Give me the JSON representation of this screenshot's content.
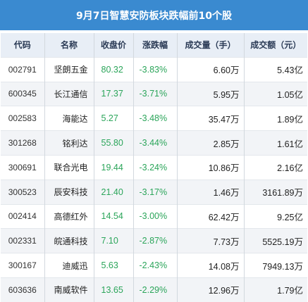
{
  "colors": {
    "header_bg": "#3a8ad0",
    "column_header_bg": "#e8eef6",
    "down": "#2ba55a"
  },
  "chart_data": {
    "type": "table",
    "title": "9月7日智慧安防板块跌幅前10个股",
    "columns": [
      "代码",
      "名称",
      "收盘价",
      "涨跌幅",
      "成交量（手）",
      "成交额（元）"
    ],
    "rows": [
      [
        "002791",
        "坚朗五金",
        "80.32",
        "-3.83%",
        "6.60万",
        "5.43亿"
      ],
      [
        "600345",
        "长江通信",
        "17.37",
        "-3.71%",
        "5.95万",
        "1.05亿"
      ],
      [
        "002583",
        "海能达",
        "5.27",
        "-3.48%",
        "35.47万",
        "1.89亿"
      ],
      [
        "301268",
        "铭利达",
        "55.80",
        "-3.44%",
        "2.85万",
        "1.61亿"
      ],
      [
        "300691",
        "联合光电",
        "19.44",
        "-3.24%",
        "10.86万",
        "2.16亿"
      ],
      [
        "300523",
        "辰安科技",
        "21.40",
        "-3.17%",
        "1.46万",
        "3161.89万"
      ],
      [
        "002414",
        "高德红外",
        "14.54",
        "-3.00%",
        "62.42万",
        "9.25亿"
      ],
      [
        "002331",
        "皖通科技",
        "7.10",
        "-2.87%",
        "7.73万",
        "5525.19万"
      ],
      [
        "300167",
        "迪威迅",
        "5.63",
        "-2.43%",
        "14.08万",
        "7949.13万"
      ],
      [
        "603636",
        "南威软件",
        "13.65",
        "-2.29%",
        "12.96万",
        "1.79亿"
      ]
    ]
  }
}
